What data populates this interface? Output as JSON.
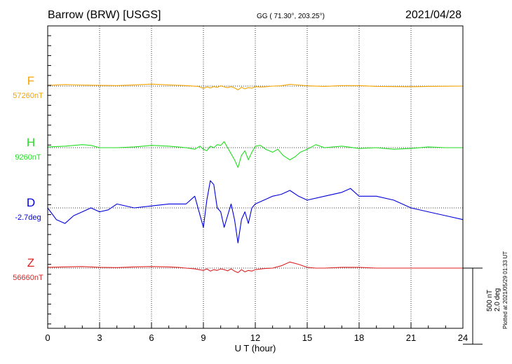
{
  "header": {
    "station": "Barrow (BRW)  [USGS]",
    "coords": "GG ( 71.30°, 203.25°)",
    "date": "2021/04/28"
  },
  "scale": {
    "field": "500 nT",
    "angle": "2.0 deg"
  },
  "plotted_at": "Plotted at 2021/05/29 01:33 UT",
  "chart_data": {
    "type": "line",
    "xlabel": "U T (hour)",
    "xlim": [
      0,
      24
    ],
    "x_ticks": [
      "0",
      "3",
      "6",
      "9",
      "12",
      "15",
      "18",
      "21",
      "24"
    ],
    "grid": true,
    "series": [
      {
        "name": "F",
        "baseline_label": "57260nT",
        "color": "#f5a400",
        "x": [
          0,
          1,
          2,
          3,
          4,
          5,
          6,
          7,
          8,
          8.7,
          9,
          9.2,
          9.4,
          9.6,
          9.8,
          10,
          10.2,
          10.4,
          10.6,
          10.8,
          11,
          11.2,
          11.4,
          11.6,
          11.8,
          12,
          12.3,
          12.6,
          13,
          13.5,
          14,
          14.5,
          15,
          16,
          17,
          18,
          19,
          20,
          21,
          22,
          23,
          24
        ],
        "y": [
          5,
          10,
          7,
          5,
          3,
          8,
          13,
          8,
          3,
          -2,
          -15,
          -5,
          -12,
          -3,
          -8,
          2,
          -5,
          -10,
          -3,
          -12,
          -25,
          -8,
          -18,
          -10,
          -14,
          -3,
          -6,
          -4,
          0,
          2,
          12,
          7,
          2,
          -2,
          3,
          3,
          -2,
          -3,
          -4,
          -2,
          -1,
          0
        ]
      },
      {
        "name": "H",
        "baseline_label": "9260nT",
        "color": "#22dd22",
        "x": [
          0,
          1,
          2,
          2.5,
          3,
          4,
          5,
          6,
          7,
          8,
          8.5,
          8.8,
          9,
          9.2,
          9.4,
          9.6,
          9.8,
          10,
          10.2,
          10.4,
          10.6,
          10.8,
          11,
          11.2,
          11.4,
          11.6,
          11.8,
          12,
          12.3,
          12.6,
          13,
          13.3,
          13.6,
          14,
          14.3,
          14.6,
          15,
          15.5,
          16,
          17,
          18,
          19,
          20,
          21,
          22,
          23,
          24
        ],
        "y": [
          5,
          10,
          20,
          15,
          0,
          0,
          5,
          15,
          10,
          0,
          -10,
          10,
          -10,
          -20,
          10,
          0,
          20,
          15,
          40,
          0,
          -40,
          -80,
          -130,
          -50,
          -20,
          -80,
          -30,
          10,
          15,
          -10,
          -30,
          -10,
          -50,
          -80,
          -60,
          -30,
          -10,
          20,
          0,
          10,
          -5,
          0,
          -10,
          -5,
          5,
          0,
          0
        ]
      },
      {
        "name": "D",
        "baseline_label": "-2.7deg",
        "color": "#0000dd",
        "x": [
          0,
          0.5,
          1,
          1.5,
          2,
          2.5,
          3,
          3.5,
          4,
          5,
          6,
          7,
          8,
          8.5,
          9,
          9.2,
          9.4,
          9.6,
          9.8,
          10,
          10.2,
          10.4,
          10.6,
          10.8,
          11,
          11.2,
          11.4,
          11.6,
          11.8,
          12,
          12.5,
          13,
          13.5,
          14,
          14.5,
          15,
          16,
          17,
          17.5,
          18,
          19,
          20,
          21,
          22,
          23,
          24
        ],
        "y": [
          0,
          -0.3,
          -0.4,
          -0.2,
          -0.1,
          0.0,
          -0.1,
          -0.05,
          0.1,
          0.0,
          0.05,
          0.1,
          0.1,
          0.3,
          -0.5,
          0.2,
          0.7,
          0.6,
          0.0,
          -0.1,
          -0.5,
          -0.2,
          0.1,
          -0.3,
          -0.9,
          -0.3,
          -0.1,
          -0.4,
          0.0,
          0.1,
          0.2,
          0.3,
          0.35,
          0.45,
          0.3,
          0.2,
          0.3,
          0.4,
          0.5,
          0.3,
          0.3,
          0.2,
          0.0,
          -0.1,
          -0.2,
          -0.3
        ]
      },
      {
        "name": "Z",
        "baseline_label": "56660nT",
        "color": "#dd2222",
        "x": [
          0,
          1,
          2,
          3,
          4,
          5,
          6,
          7,
          7.5,
          8,
          8.5,
          9,
          9.2,
          9.4,
          9.6,
          9.8,
          10,
          10.2,
          10.4,
          10.6,
          10.8,
          11,
          11.2,
          11.4,
          11.6,
          11.8,
          12,
          12.5,
          13,
          13.5,
          14,
          14.5,
          15,
          15.5,
          16,
          17,
          18,
          19,
          20,
          21,
          22,
          23,
          24
        ],
        "y": [
          5,
          8,
          10,
          5,
          3,
          8,
          10,
          8,
          5,
          0,
          -5,
          -15,
          -5,
          -20,
          -10,
          -15,
          -5,
          -10,
          -18,
          -5,
          -20,
          -30,
          -10,
          -25,
          -15,
          -20,
          -10,
          -3,
          0,
          15,
          40,
          25,
          5,
          0,
          0,
          5,
          5,
          0,
          0,
          0,
          0,
          0,
          0
        ]
      }
    ]
  }
}
